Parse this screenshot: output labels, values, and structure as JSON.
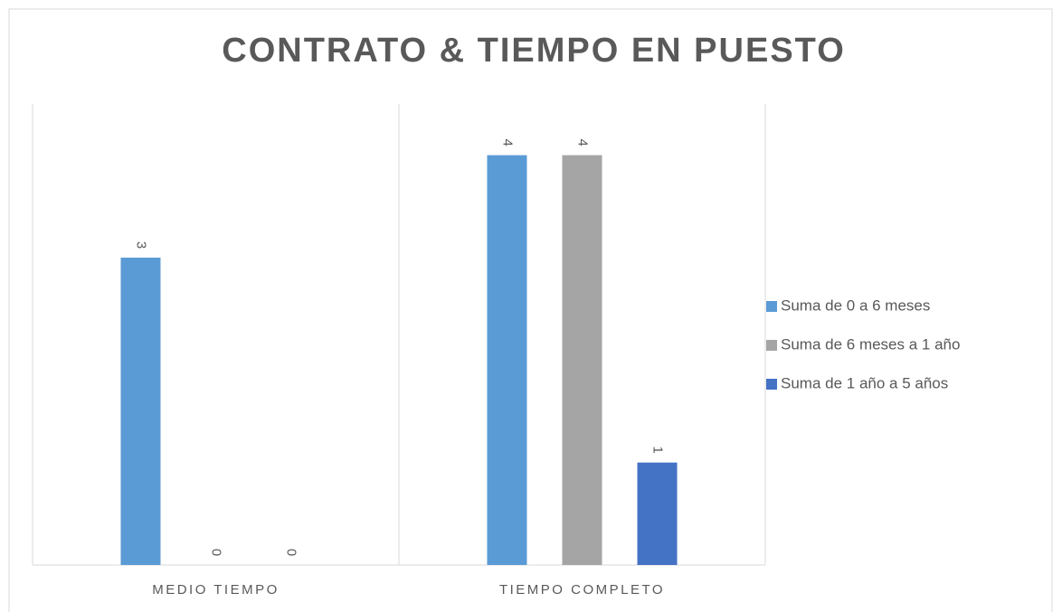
{
  "chart_data": {
    "type": "bar",
    "title": "CONTRATO & TIEMPO EN PUESTO",
    "categories": [
      "MEDIO TIEMPO",
      "TIEMPO COMPLETO"
    ],
    "series": [
      {
        "name": "Suma de 0 a 6 meses",
        "color": "#5b9bd5",
        "values": [
          3,
          4
        ]
      },
      {
        "name": "Suma de 6 meses a 1 año",
        "color": "#a5a5a5",
        "values": [
          0,
          4
        ]
      },
      {
        "name": "Suma de 1 año a 5 años",
        "color": "#4472c4",
        "values": [
          0,
          1
        ]
      }
    ],
    "ylim": [
      0,
      4.5
    ],
    "legend": "right",
    "data_labels": true
  }
}
